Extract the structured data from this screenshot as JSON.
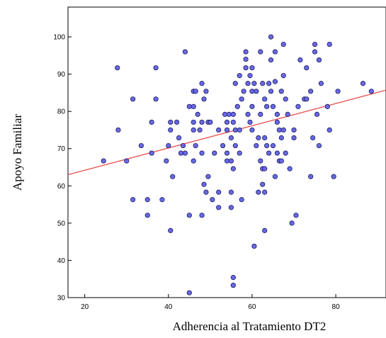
{
  "chart_data": {
    "type": "scatter",
    "title": "",
    "xlabel": "Adherencia al Tratamiento DT2",
    "ylabel": "Apoyo Familiar",
    "xlim": [
      16,
      92
    ],
    "ylim": [
      30,
      108
    ],
    "xticks": [
      20,
      40,
      60,
      80
    ],
    "yticks": [
      30,
      40,
      50,
      60,
      70,
      80,
      90,
      100
    ],
    "grid": false,
    "legend": "none",
    "point_color": "#6868e8",
    "point_edge_color": "#1a1a5a",
    "fit_line_color": "#e85050",
    "fit_line": {
      "x": [
        16,
        92
      ],
      "y": [
        63.0,
        85.7
      ]
    },
    "series": [
      {
        "points": [
          [
            24.5,
            66.7
          ],
          [
            27.8,
            91.7
          ],
          [
            28,
            75
          ],
          [
            30,
            66.7
          ],
          [
            31.5,
            83.3
          ],
          [
            31.5,
            56.3
          ],
          [
            33.5,
            70.8
          ],
          [
            35,
            52.1
          ],
          [
            35,
            56.3
          ],
          [
            36,
            77.1
          ],
          [
            36,
            68.8
          ],
          [
            37,
            91.7
          ],
          [
            37,
            83.3
          ],
          [
            38.5,
            56.3
          ],
          [
            39.5,
            66.7
          ],
          [
            40,
            70.8
          ],
          [
            40.5,
            77.1
          ],
          [
            40.5,
            75
          ],
          [
            40.5,
            48
          ],
          [
            41,
            62.5
          ],
          [
            42,
            77.1
          ],
          [
            42.5,
            72.9
          ],
          [
            43,
            68.8
          ],
          [
            43.5,
            70.8
          ],
          [
            44,
            68.8
          ],
          [
            44,
            96
          ],
          [
            45,
            81.3
          ],
          [
            45,
            52.1
          ],
          [
            45,
            31.3
          ],
          [
            46,
            81.3
          ],
          [
            46,
            85.4
          ],
          [
            46,
            77.1
          ],
          [
            46,
            75
          ],
          [
            46.5,
            85.4
          ],
          [
            46.5,
            70.8
          ],
          [
            46,
            66.7
          ],
          [
            47,
            79.2
          ],
          [
            47.5,
            75
          ],
          [
            48,
            68.8
          ],
          [
            48,
            52.1
          ],
          [
            48,
            77.1
          ],
          [
            48,
            87.5
          ],
          [
            48.5,
            83.3
          ],
          [
            48.5,
            60.4
          ],
          [
            49,
            58.3
          ],
          [
            49,
            85.4
          ],
          [
            49.5,
            77.1
          ],
          [
            49.5,
            62.5
          ],
          [
            50,
            77.1
          ],
          [
            50.5,
            56.3
          ],
          [
            51,
            68.8
          ],
          [
            52,
            58.3
          ],
          [
            52,
            75
          ],
          [
            52,
            54.2
          ],
          [
            53,
            70.8
          ],
          [
            53.5,
            79.2
          ],
          [
            54,
            77.1
          ],
          [
            54,
            75
          ],
          [
            54,
            68.8
          ],
          [
            54,
            66.7
          ],
          [
            54.5,
            79.2
          ],
          [
            55,
            54.2
          ],
          [
            55,
            72.9
          ],
          [
            55,
            66.7
          ],
          [
            55,
            58.3
          ],
          [
            55.5,
            35.4
          ],
          [
            55.5,
            33.3
          ],
          [
            55.5,
            79.2
          ],
          [
            55.5,
            77.1
          ],
          [
            55.5,
            64.6
          ],
          [
            56,
            75
          ],
          [
            56,
            70.8
          ],
          [
            56.5,
            81.3
          ],
          [
            56,
            87.5
          ],
          [
            57,
            89.6
          ],
          [
            57,
            75
          ],
          [
            57,
            68.8
          ],
          [
            57.5,
            56.3
          ],
          [
            57.5,
            83.3
          ],
          [
            58,
            85.4
          ],
          [
            58.5,
            91.7
          ],
          [
            58.5,
            94
          ],
          [
            58.5,
            96
          ],
          [
            59,
            87.5
          ],
          [
            59,
            79.2
          ],
          [
            59.5,
            89.6
          ],
          [
            59.5,
            77.1
          ],
          [
            60,
            91.7
          ],
          [
            60,
            85.4
          ],
          [
            60,
            81.3
          ],
          [
            60,
            75
          ],
          [
            60.5,
            43.8
          ],
          [
            60.5,
            87.5
          ],
          [
            61,
            85.4
          ],
          [
            61,
            70.8
          ],
          [
            61.5,
            72.9
          ],
          [
            61.5,
            58.3
          ],
          [
            62,
            96
          ],
          [
            62,
            79.2
          ],
          [
            62,
            66.7
          ],
          [
            62.5,
            64.6
          ],
          [
            62.5,
            87.5
          ],
          [
            62.5,
            60.4
          ],
          [
            63,
            72.9
          ],
          [
            63,
            83.3
          ],
          [
            63,
            64.6
          ],
          [
            63,
            58.3
          ],
          [
            63,
            48
          ],
          [
            63.5,
            70.8
          ],
          [
            63.5,
            81.3
          ],
          [
            64,
            87.5
          ],
          [
            64,
            68.8
          ],
          [
            64.5,
            100
          ],
          [
            64.5,
            93.8
          ],
          [
            64.5,
            85.4
          ],
          [
            65,
            81.3
          ],
          [
            65,
            70.8
          ],
          [
            65.5,
            96
          ],
          [
            65.5,
            88
          ],
          [
            65.5,
            62.5
          ],
          [
            66,
            79.2
          ],
          [
            66,
            77.1
          ],
          [
            66,
            68.8
          ],
          [
            66.5,
            75
          ],
          [
            66.5,
            66.7
          ],
          [
            67,
            85.4
          ],
          [
            67,
            72.9
          ],
          [
            67,
            66.7
          ],
          [
            67.5,
            98
          ],
          [
            67.5,
            89.6
          ],
          [
            67.5,
            75
          ],
          [
            68,
            83.3
          ],
          [
            68,
            68.8
          ],
          [
            68.5,
            79.2
          ],
          [
            69,
            64.6
          ],
          [
            69.5,
            50
          ],
          [
            70,
            75
          ],
          [
            70,
            72.9
          ],
          [
            70.5,
            52.1
          ],
          [
            71,
            81.3
          ],
          [
            71.5,
            93.8
          ],
          [
            72.5,
            83.3
          ],
          [
            73,
            91.7
          ],
          [
            73,
            83.3
          ],
          [
            74,
            62.5
          ],
          [
            74,
            85.4
          ],
          [
            74.5,
            72.9
          ],
          [
            75,
            96
          ],
          [
            75,
            98
          ],
          [
            75.5,
            79.2
          ],
          [
            76,
            70.8
          ],
          [
            76,
            93.8
          ],
          [
            76.5,
            87.5
          ],
          [
            78,
            81.3
          ],
          [
            78.5,
            75
          ],
          [
            78.5,
            98
          ],
          [
            79.5,
            62.5
          ],
          [
            80.5,
            85.4
          ],
          [
            86.5,
            87.5
          ],
          [
            88.5,
            85.4
          ]
        ]
      }
    ]
  }
}
